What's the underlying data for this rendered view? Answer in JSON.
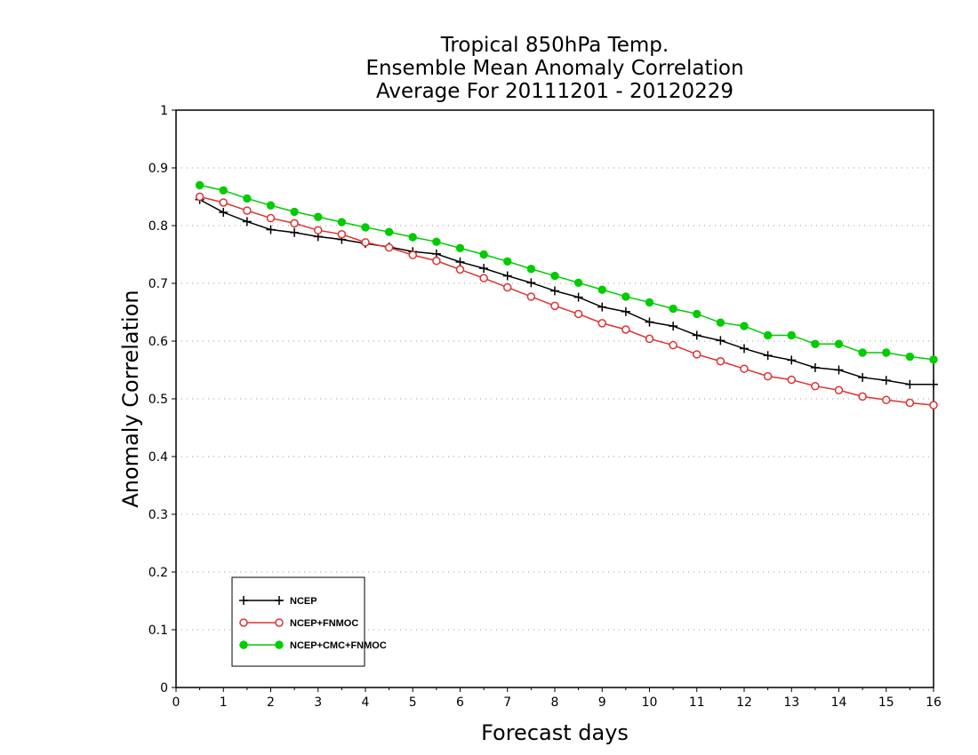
{
  "chart_data": {
    "type": "line",
    "title": [
      "Tropical 850hPa Temp.",
      "Ensemble Mean Anomaly Correlation",
      "Average For 20111201 - 20120229"
    ],
    "xlabel": "Forecast days",
    "ylabel": "Anomaly Correlation",
    "xlim": [
      0,
      16
    ],
    "ylim": [
      0,
      1
    ],
    "xticks": [
      "0",
      "1",
      "2",
      "3",
      "4",
      "5",
      "6",
      "7",
      "8",
      "9",
      "10",
      "11",
      "12",
      "13",
      "14",
      "15",
      "16"
    ],
    "yticks": [
      "0",
      "0.1",
      "0.2",
      "0.3",
      "0.4",
      "0.5",
      "0.6",
      "0.7",
      "0.8",
      "0.9",
      "1"
    ],
    "grid": true,
    "legend_position": "bottom-left",
    "x": [
      0.5,
      1,
      1.5,
      2,
      2.5,
      3,
      3.5,
      4,
      4.5,
      5,
      5.5,
      6,
      6.5,
      7,
      7.5,
      8,
      8.5,
      9,
      9.5,
      10,
      10.5,
      11,
      11.5,
      12,
      12.5,
      13,
      13.5,
      14,
      14.5,
      15,
      15.5,
      16
    ],
    "series": [
      {
        "name": "NCEP",
        "color": "#000000",
        "marker": "plus",
        "values": [
          0.845,
          0.823,
          0.807,
          0.793,
          0.788,
          0.781,
          0.776,
          0.769,
          0.763,
          0.755,
          0.751,
          0.737,
          0.726,
          0.713,
          0.701,
          0.687,
          0.676,
          0.659,
          0.651,
          0.633,
          0.626,
          0.61,
          0.601,
          0.587,
          0.575,
          0.567,
          0.554,
          0.55,
          0.537,
          0.532,
          0.525,
          0.525
        ]
      },
      {
        "name": "NCEP+FNMOC",
        "color": "#e03030",
        "marker": "open-circle",
        "values": [
          0.85,
          0.84,
          0.826,
          0.813,
          0.804,
          0.792,
          0.785,
          0.771,
          0.762,
          0.749,
          0.739,
          0.724,
          0.709,
          0.693,
          0.677,
          0.661,
          0.647,
          0.631,
          0.62,
          0.604,
          0.593,
          0.577,
          0.565,
          0.552,
          0.539,
          0.533,
          0.522,
          0.515,
          0.504,
          0.498,
          0.493,
          0.489
        ]
      },
      {
        "name": "NCEP+CMC+FNMOC",
        "color": "#00cc00",
        "marker": "filled-circle",
        "values": [
          0.87,
          0.861,
          0.847,
          0.835,
          0.824,
          0.815,
          0.806,
          0.797,
          0.789,
          0.78,
          0.772,
          0.761,
          0.75,
          0.738,
          0.725,
          0.713,
          0.701,
          0.689,
          0.677,
          0.667,
          0.656,
          0.647,
          0.632,
          0.626,
          0.61,
          0.61,
          0.595,
          0.595,
          0.58,
          0.58,
          0.573,
          0.568
        ]
      }
    ]
  }
}
